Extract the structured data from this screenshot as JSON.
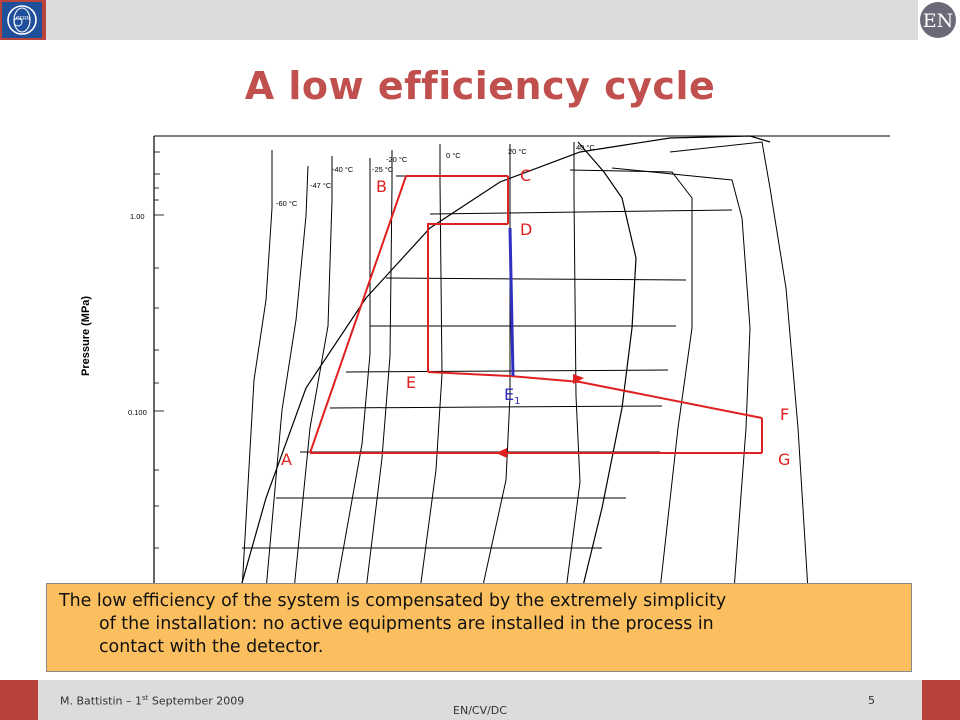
{
  "header": {
    "title": "A low efficiency cycle",
    "brand_color": "#c0504d",
    "logo_left": "CERN",
    "logo_right": "EN"
  },
  "diagram": {
    "y_axis_label": "Pressure (MPa)",
    "y_ticks": [
      "1.00",
      "0.100"
    ],
    "isotherms": [
      "-60 °C",
      "-47 °C",
      "-40 °C",
      "-25 °C",
      "-20 °C",
      "0 °C",
      "20 °C",
      "40 °C"
    ],
    "points": {
      "A": "A",
      "B": "B",
      "C": "C",
      "D": "D",
      "E": "E",
      "E1_base": "E",
      "E1_sub": "1",
      "F": "F",
      "G": "G"
    },
    "cycle_color": "#e02020",
    "expansion_color": "#3030c0"
  },
  "note": {
    "line1": "The low efficiency of the system is compensated by the extremely simplicity",
    "line2": "of the installation: no active equipments are installed in the process in",
    "line3": "contact with the detector.",
    "background": "#fbbf5f"
  },
  "footer": {
    "author": "M. Battistin – 1",
    "author_sup": "st",
    "author_rest": " September 2009",
    "department": "EN/CV/DC",
    "page": "5"
  }
}
